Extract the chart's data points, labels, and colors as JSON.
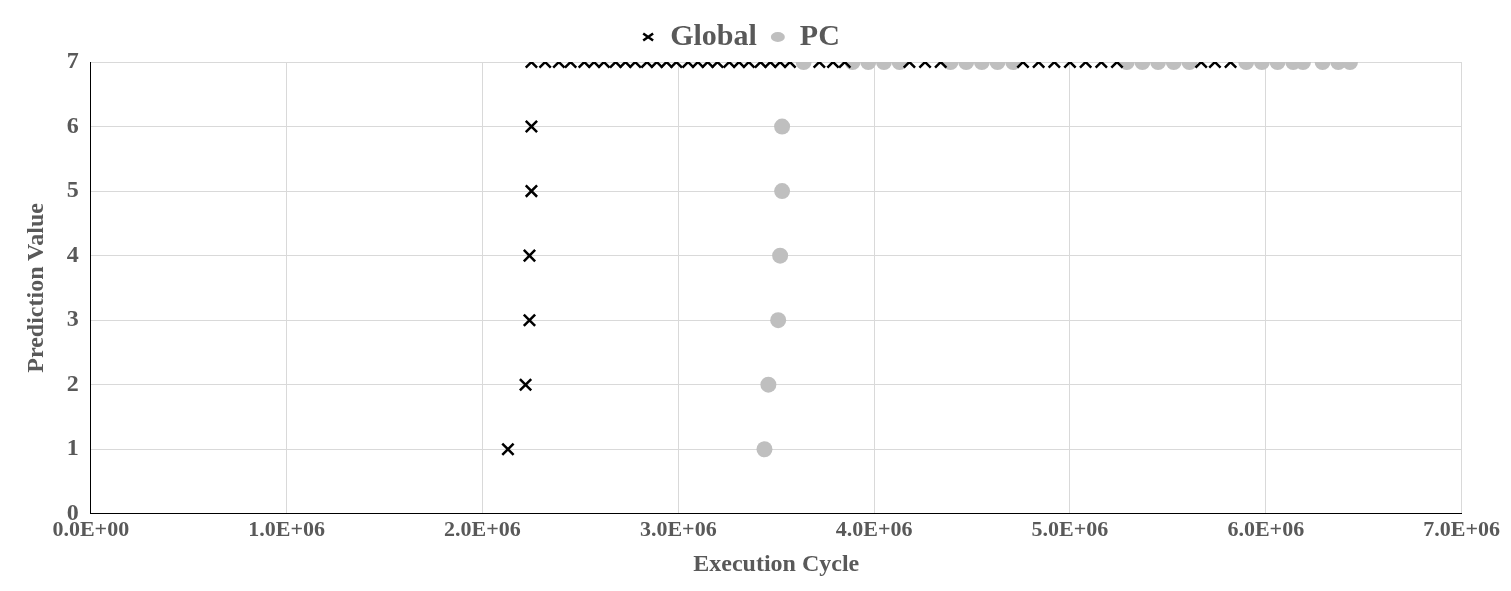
{
  "chart_data": {
    "type": "scatter",
    "xlabel": "Execution Cycle",
    "ylabel": "Prediction Value",
    "xlim": [
      0,
      7000000
    ],
    "ylim": [
      0,
      7
    ],
    "xticks": [
      {
        "value": 0,
        "label": "0.0E+00"
      },
      {
        "value": 1000000,
        "label": "1.0E+06"
      },
      {
        "value": 2000000,
        "label": "2.0E+06"
      },
      {
        "value": 3000000,
        "label": "3.0E+06"
      },
      {
        "value": 4000000,
        "label": "4.0E+06"
      },
      {
        "value": 5000000,
        "label": "5.0E+06"
      },
      {
        "value": 6000000,
        "label": "6.0E+06"
      },
      {
        "value": 7000000,
        "label": "7.0E+06"
      }
    ],
    "yticks": [
      0,
      1,
      2,
      3,
      4,
      5,
      6,
      7
    ],
    "grid": true,
    "legend": "top",
    "series": [
      {
        "name": "Global",
        "color": "#000000",
        "marker": "cross",
        "x": [
          2130000,
          2220000,
          2240000,
          2240000,
          2250000,
          2250000,
          2250000,
          2320000,
          2390000,
          2450000,
          2520000,
          2570000,
          2620000,
          2680000,
          2730000,
          2780000,
          2840000,
          2890000,
          2940000,
          2990000,
          3050000,
          3100000,
          3150000,
          3200000,
          3260000,
          3310000,
          3360000,
          3420000,
          3470000,
          3520000,
          3570000,
          3720000,
          3790000,
          3850000,
          4180000,
          4260000,
          4340000,
          4760000,
          4840000,
          4920000,
          5000000,
          5080000,
          5160000,
          5240000,
          5670000,
          5740000,
          5820000
        ],
        "values": [
          1,
          2,
          3,
          4,
          5,
          6,
          7,
          7,
          7,
          7,
          7,
          7,
          7,
          7,
          7,
          7,
          7,
          7,
          7,
          7,
          7,
          7,
          7,
          7,
          7,
          7,
          7,
          7,
          7,
          7,
          7,
          7,
          7,
          7,
          7,
          7,
          7,
          7,
          7,
          7,
          7,
          7,
          7,
          7,
          7,
          7,
          7
        ]
      },
      {
        "name": "PC",
        "color": "#bfbfbf",
        "marker": "circle",
        "x": [
          3440000,
          3460000,
          3510000,
          3520000,
          3530000,
          3530000,
          3640000,
          3890000,
          3970000,
          4050000,
          4130000,
          4390000,
          4470000,
          4550000,
          4630000,
          4710000,
          5290000,
          5370000,
          5450000,
          5530000,
          5610000,
          5900000,
          5980000,
          6060000,
          6140000,
          6190000,
          6290000,
          6370000,
          6430000
        ],
        "values": [
          1,
          2,
          3,
          4,
          5,
          6,
          7,
          7,
          7,
          7,
          7,
          7,
          7,
          7,
          7,
          7,
          7,
          7,
          7,
          7,
          7,
          7,
          7,
          7,
          7,
          7,
          7,
          7,
          7
        ]
      }
    ]
  }
}
